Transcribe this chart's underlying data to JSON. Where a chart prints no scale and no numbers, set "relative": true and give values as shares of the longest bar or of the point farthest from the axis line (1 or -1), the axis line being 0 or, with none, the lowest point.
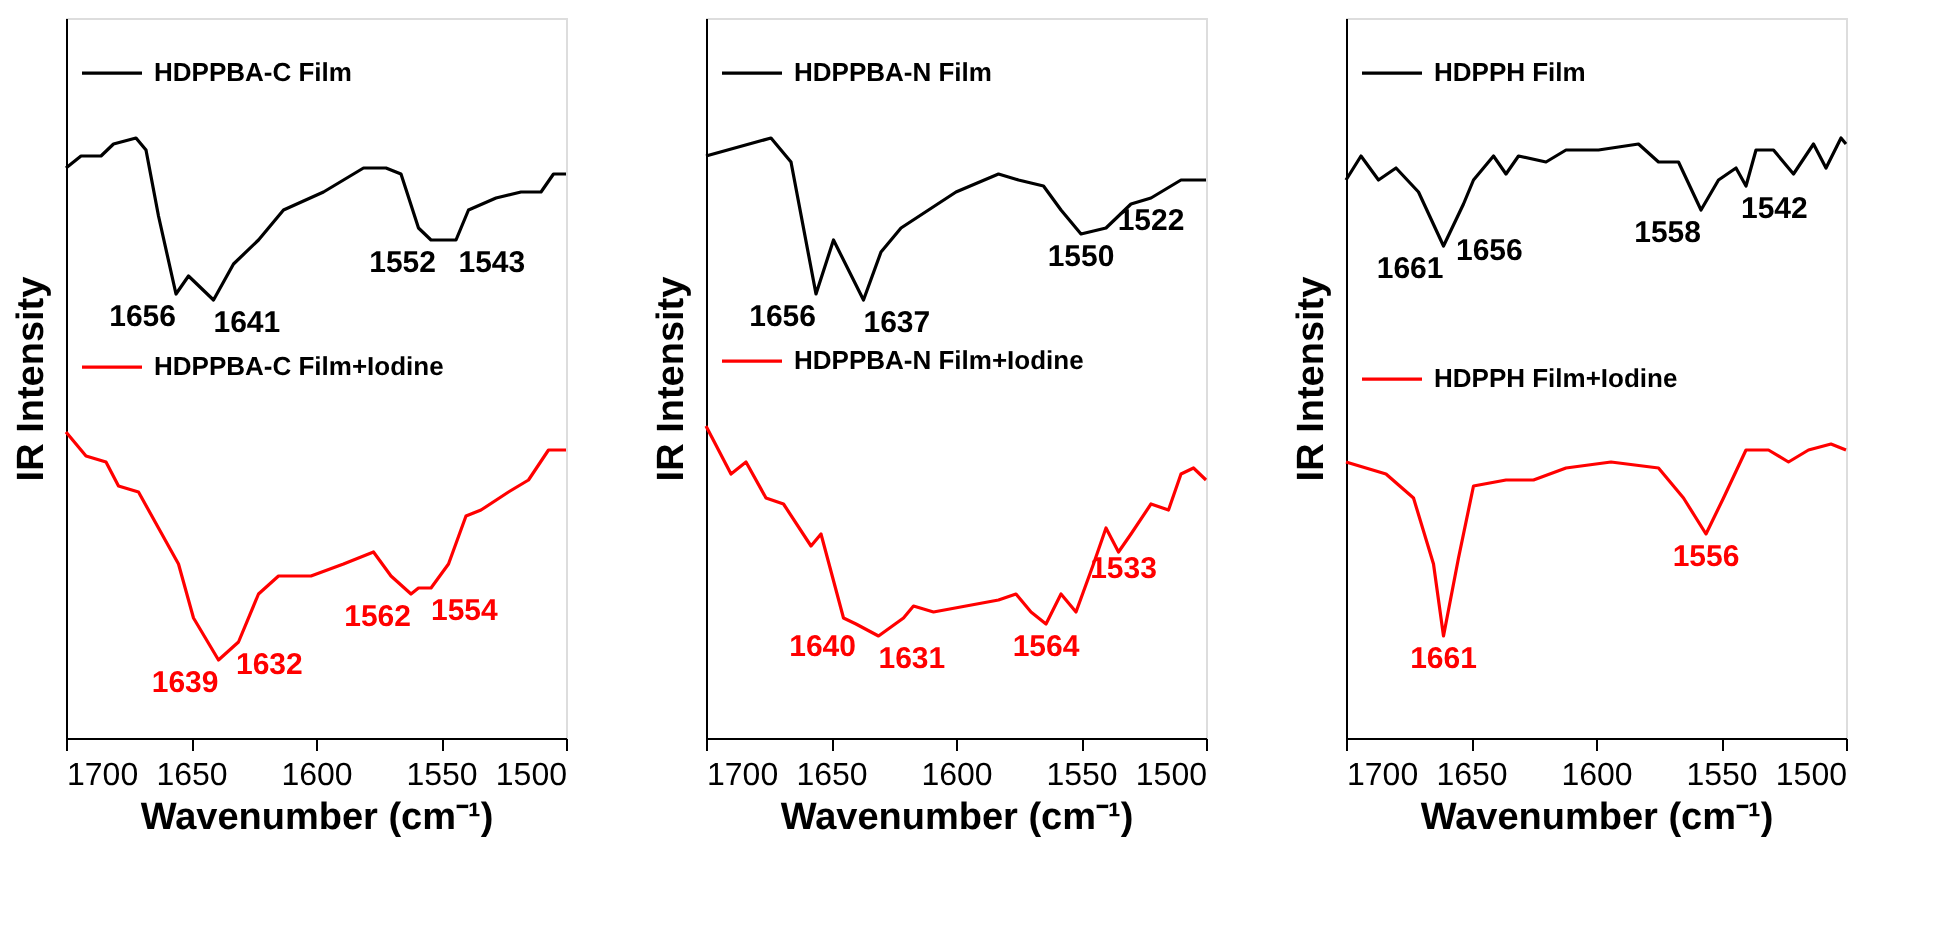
{
  "chart_data": [
    {
      "type": "line",
      "relative": true,
      "xlabel": "Wavenumber (cm⁻¹)",
      "ylabel": "IR Intensity",
      "xlim": [
        1700,
        1500
      ],
      "xticks": [
        1700,
        1650,
        1600,
        1550,
        1500
      ],
      "tick_labels": "x",
      "grid": false,
      "legend": "top left",
      "series": [
        {
          "name": "HDPPBA-C Film",
          "color": "#000000",
          "x": [
            1700,
            1694,
            1686,
            1681,
            1672,
            1668,
            1663,
            1656,
            1651,
            1641,
            1633,
            1623,
            1613,
            1597,
            1581,
            1572,
            1566,
            1559,
            1554,
            1544,
            1539,
            1528,
            1518,
            1510,
            1505,
            1500
          ],
          "values": [
            0.95,
            0.97,
            0.97,
            0.99,
            1.0,
            0.98,
            0.87,
            0.74,
            0.77,
            0.73,
            0.79,
            0.83,
            0.88,
            0.91,
            0.95,
            0.95,
            0.94,
            0.85,
            0.83,
            0.83,
            0.88,
            0.9,
            0.91,
            0.91,
            0.94,
            0.94
          ]
        },
        {
          "name": "HDPPBA-C Film+Iodine",
          "color": "#ff0000",
          "x": [
            1700,
            1692,
            1684,
            1679,
            1671,
            1663,
            1655,
            1649,
            1639,
            1631,
            1623,
            1615,
            1602,
            1589,
            1577,
            1570,
            1562,
            1559,
            1554,
            1547,
            1540,
            1534,
            1523,
            1515,
            1507,
            1500
          ],
          "values": [
            0.51,
            0.47,
            0.46,
            0.42,
            0.41,
            0.35,
            0.29,
            0.2,
            0.13,
            0.16,
            0.24,
            0.27,
            0.27,
            0.29,
            0.31,
            0.27,
            0.24,
            0.25,
            0.25,
            0.29,
            0.37,
            0.38,
            0.41,
            0.43,
            0.48,
            0.48
          ]
        }
      ],
      "annotations": [
        {
          "text": "1656",
          "x": 1656,
          "y": 0.74
        },
        {
          "text": "1641",
          "x": 1641,
          "y": 0.73
        },
        {
          "text": "1552",
          "x": 1552,
          "y": 0.83
        },
        {
          "text": "1543",
          "x": 1543,
          "y": 0.83
        },
        {
          "text": "1639",
          "x": 1639,
          "y": 0.13
        },
        {
          "text": "1632",
          "x": 1632,
          "y": 0.16
        },
        {
          "text": "1562",
          "x": 1562,
          "y": 0.24
        },
        {
          "text": "1554",
          "x": 1554,
          "y": 0.25
        }
      ]
    },
    {
      "type": "line",
      "relative": true,
      "xlabel": "Wavenumber (cm⁻¹)",
      "ylabel": "IR Intensity",
      "xlim": [
        1700,
        1500
      ],
      "xticks": [
        1700,
        1650,
        1600,
        1550,
        1500
      ],
      "tick_labels": "x",
      "grid": false,
      "legend": "top left",
      "series": [
        {
          "name": "HDPPBA-N Film",
          "color": "#000000",
          "x": [
            1700,
            1674,
            1666,
            1656,
            1649,
            1637,
            1630,
            1622,
            1600,
            1583,
            1575,
            1565,
            1558,
            1550,
            1540,
            1530,
            1522,
            1510,
            1500
          ],
          "values": [
            0.97,
            1.0,
            0.96,
            0.74,
            0.83,
            0.73,
            0.81,
            0.85,
            0.91,
            0.94,
            0.93,
            0.92,
            0.88,
            0.84,
            0.85,
            0.89,
            0.9,
            0.93,
            0.93
          ]
        },
        {
          "name": "HDPPBA-N Film+Iodine",
          "color": "#ff0000",
          "x": [
            1700,
            1690,
            1684,
            1676,
            1669,
            1658,
            1654,
            1645,
            1640,
            1631,
            1621,
            1617,
            1609,
            1583,
            1576,
            1570,
            1564,
            1558,
            1552,
            1545,
            1540,
            1535,
            1530,
            1522,
            1515,
            1510,
            1505,
            1500
          ],
          "values": [
            0.52,
            0.44,
            0.46,
            0.4,
            0.39,
            0.32,
            0.34,
            0.2,
            0.19,
            0.17,
            0.2,
            0.22,
            0.21,
            0.23,
            0.24,
            0.21,
            0.19,
            0.24,
            0.21,
            0.29,
            0.35,
            0.31,
            0.34,
            0.39,
            0.38,
            0.44,
            0.45,
            0.43
          ]
        }
      ],
      "annotations": [
        {
          "text": "1656",
          "x": 1656,
          "y": 0.74
        },
        {
          "text": "1637",
          "x": 1637,
          "y": 0.73
        },
        {
          "text": "1550",
          "x": 1550,
          "y": 0.84
        },
        {
          "text": "1522",
          "x": 1522,
          "y": 0.9
        },
        {
          "text": "1640",
          "x": 1640,
          "y": 0.19
        },
        {
          "text": "1631",
          "x": 1631,
          "y": 0.17
        },
        {
          "text": "1564",
          "x": 1564,
          "y": 0.19
        },
        {
          "text": "1533",
          "x": 1533,
          "y": 0.32
        }
      ]
    },
    {
      "type": "line",
      "relative": true,
      "xlabel": "Wavenumber (cm⁻¹)",
      "ylabel": "IR Intensity",
      "xlim": [
        1700,
        1500
      ],
      "xticks": [
        1700,
        1650,
        1600,
        1550,
        1500
      ],
      "tick_labels": "x",
      "grid": false,
      "legend": "top left",
      "series": [
        {
          "name": "HDPPH Film",
          "color": "#000000",
          "x": [
            1700,
            1694,
            1687,
            1680,
            1671,
            1661,
            1653,
            1649,
            1641,
            1636,
            1631,
            1620,
            1612,
            1599,
            1583,
            1575,
            1567,
            1558,
            1551,
            1544,
            1540,
            1536,
            1529,
            1521,
            1513,
            1508,
            1502,
            1500
          ],
          "values": [
            0.93,
            0.97,
            0.93,
            0.95,
            0.91,
            0.82,
            0.89,
            0.93,
            0.97,
            0.94,
            0.97,
            0.96,
            0.98,
            0.98,
            0.99,
            0.96,
            0.96,
            0.88,
            0.93,
            0.95,
            0.92,
            0.98,
            0.98,
            0.94,
            0.99,
            0.95,
            1.0,
            0.99
          ]
        },
        {
          "name": "HDPPH Film+Iodine",
          "color": "#ff0000",
          "x": [
            1700,
            1684,
            1673,
            1665,
            1661,
            1655,
            1649,
            1636,
            1625,
            1612,
            1594,
            1575,
            1565,
            1556,
            1549,
            1540,
            1531,
            1523,
            1515,
            1506,
            1500
          ],
          "values": [
            0.46,
            0.44,
            0.4,
            0.29,
            0.17,
            0.3,
            0.42,
            0.43,
            0.43,
            0.45,
            0.46,
            0.45,
            0.4,
            0.34,
            0.4,
            0.48,
            0.48,
            0.46,
            0.48,
            0.49,
            0.48
          ]
        }
      ],
      "annotations": [
        {
          "text": "1661",
          "x": 1661,
          "y": 0.82
        },
        {
          "text": "1656",
          "x": 1656,
          "y": 0.85
        },
        {
          "text": "1558",
          "x": 1558,
          "y": 0.88
        },
        {
          "text": "1542",
          "x": 1542,
          "y": 0.92
        },
        {
          "text": "1661",
          "x": 1661,
          "y": 0.17
        },
        {
          "text": "1556",
          "x": 1556,
          "y": 0.34
        }
      ]
    }
  ]
}
